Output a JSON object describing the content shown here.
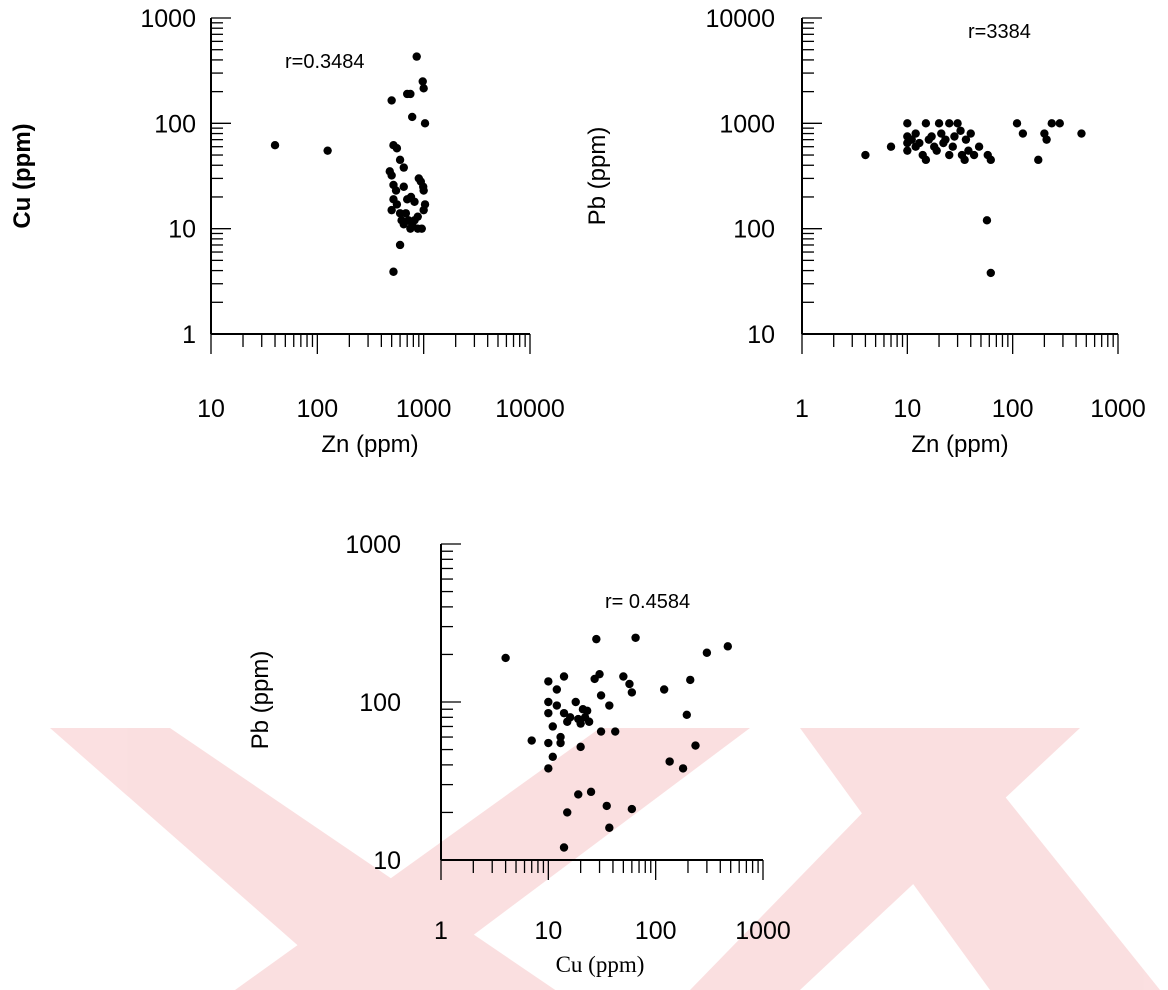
{
  "watermark": {
    "color": "#e0131a"
  },
  "chart_data": [
    {
      "type": "scatter",
      "xlabel": "Zn (ppm)",
      "ylabel": "Cu (ppm)",
      "xscale": "log",
      "yscale": "log",
      "xlim": [
        10,
        10000
      ],
      "ylim": [
        1,
        1000
      ],
      "x_ticks": [
        "10",
        "100",
        "1000",
        "10000"
      ],
      "y_ticks": [
        "1",
        "10",
        "100",
        "1000"
      ],
      "annotation": "r=0.3484",
      "marker_color": "#000000",
      "points": [
        [
          40,
          62
        ],
        [
          125,
          55
        ],
        [
          500,
          165
        ],
        [
          520,
          62
        ],
        [
          560,
          58
        ],
        [
          600,
          45
        ],
        [
          650,
          38
        ],
        [
          700,
          190
        ],
        [
          750,
          190
        ],
        [
          780,
          115
        ],
        [
          860,
          430
        ],
        [
          900,
          30
        ],
        [
          940,
          28
        ],
        [
          980,
          250
        ],
        [
          1000,
          215
        ],
        [
          1030,
          100
        ],
        [
          480,
          35
        ],
        [
          500,
          32
        ],
        [
          520,
          26
        ],
        [
          550,
          23
        ],
        [
          500,
          15
        ],
        [
          520,
          19
        ],
        [
          560,
          17
        ],
        [
          600,
          14
        ],
        [
          620,
          12
        ],
        [
          650,
          11
        ],
        [
          680,
          14
        ],
        [
          720,
          12
        ],
        [
          750,
          10
        ],
        [
          780,
          11
        ],
        [
          820,
          12
        ],
        [
          880,
          10
        ],
        [
          960,
          10
        ],
        [
          1000,
          15
        ],
        [
          1030,
          17
        ],
        [
          1000,
          23
        ],
        [
          990,
          25
        ],
        [
          650,
          25
        ],
        [
          700,
          19
        ],
        [
          760,
          20
        ],
        [
          820,
          18
        ],
        [
          880,
          13
        ],
        [
          600,
          7
        ],
        [
          520,
          3.9
        ]
      ]
    },
    {
      "type": "scatter",
      "xlabel": "Zn (ppm)",
      "ylabel": "Pb (ppm)",
      "xscale": "log",
      "yscale": "log",
      "xlim": [
        1,
        1000
      ],
      "ylim": [
        10,
        10000
      ],
      "x_ticks": [
        "1",
        "10",
        "100",
        "1000"
      ],
      "y_ticks": [
        "10",
        "100",
        "1000",
        "10000"
      ],
      "annotation": "r=3384",
      "marker_color": "#000000",
      "points": [
        [
          4,
          500
        ],
        [
          7,
          600
        ],
        [
          10,
          1000
        ],
        [
          10,
          750
        ],
        [
          10,
          650
        ],
        [
          10,
          550
        ],
        [
          11,
          700
        ],
        [
          12,
          800
        ],
        [
          12,
          600
        ],
        [
          13,
          650
        ],
        [
          14,
          500
        ],
        [
          15,
          1000
        ],
        [
          15,
          450
        ],
        [
          16,
          700
        ],
        [
          17,
          750
        ],
        [
          18,
          600
        ],
        [
          19,
          550
        ],
        [
          20,
          1000
        ],
        [
          21,
          800
        ],
        [
          22,
          650
        ],
        [
          23,
          700
        ],
        [
          25,
          500
        ],
        [
          25,
          1000
        ],
        [
          27,
          600
        ],
        [
          28,
          750
        ],
        [
          30,
          1000
        ],
        [
          32,
          850
        ],
        [
          33,
          500
        ],
        [
          35,
          450
        ],
        [
          36,
          700
        ],
        [
          38,
          550
        ],
        [
          40,
          800
        ],
        [
          43,
          500
        ],
        [
          48,
          600
        ],
        [
          58,
          500
        ],
        [
          62,
          450
        ],
        [
          57,
          120
        ],
        [
          62,
          38
        ],
        [
          110,
          1000
        ],
        [
          125,
          800
        ],
        [
          175,
          450
        ],
        [
          200,
          800
        ],
        [
          210,
          700
        ],
        [
          235,
          1000
        ],
        [
          280,
          1000
        ],
        [
          450,
          800
        ]
      ]
    },
    {
      "type": "scatter",
      "xlabel": "Cu (ppm)",
      "ylabel": "Pb (ppm)",
      "xscale": "log",
      "yscale": "log",
      "xlim": [
        1,
        1000
      ],
      "ylim": [
        10,
        1000
      ],
      "x_ticks": [
        "1",
        "10",
        "100",
        "1000"
      ],
      "y_ticks": [
        "10",
        "100",
        "1000"
      ],
      "annotation": "r= 0.4584",
      "marker_color": "#000000",
      "points": [
        [
          4,
          190
        ],
        [
          7,
          57
        ],
        [
          10,
          135
        ],
        [
          10,
          100
        ],
        [
          10,
          85
        ],
        [
          10,
          55
        ],
        [
          10,
          38
        ],
        [
          11,
          70
        ],
        [
          11,
          45
        ],
        [
          12,
          120
        ],
        [
          12,
          95
        ],
        [
          13,
          60
        ],
        [
          13,
          55
        ],
        [
          14,
          85
        ],
        [
          14,
          145
        ],
        [
          15,
          75
        ],
        [
          16,
          80
        ],
        [
          18,
          100
        ],
        [
          19,
          78
        ],
        [
          20,
          73
        ],
        [
          20,
          52
        ],
        [
          21,
          90
        ],
        [
          22,
          80
        ],
        [
          23,
          88
        ],
        [
          24,
          75
        ],
        [
          27,
          140
        ],
        [
          30,
          150
        ],
        [
          31,
          110
        ],
        [
          31,
          65
        ],
        [
          37,
          95
        ],
        [
          42,
          65
        ],
        [
          28,
          250
        ],
        [
          50,
          145
        ],
        [
          57,
          130
        ],
        [
          60,
          115
        ],
        [
          65,
          255
        ],
        [
          120,
          120
        ],
        [
          135,
          42
        ],
        [
          180,
          38
        ],
        [
          195,
          83
        ],
        [
          210,
          138
        ],
        [
          235,
          53
        ],
        [
          300,
          205
        ],
        [
          470,
          225
        ],
        [
          15,
          20
        ],
        [
          19,
          26
        ],
        [
          25,
          27
        ],
        [
          35,
          22
        ],
        [
          37,
          16
        ],
        [
          60,
          21
        ],
        [
          14,
          12
        ]
      ]
    }
  ]
}
